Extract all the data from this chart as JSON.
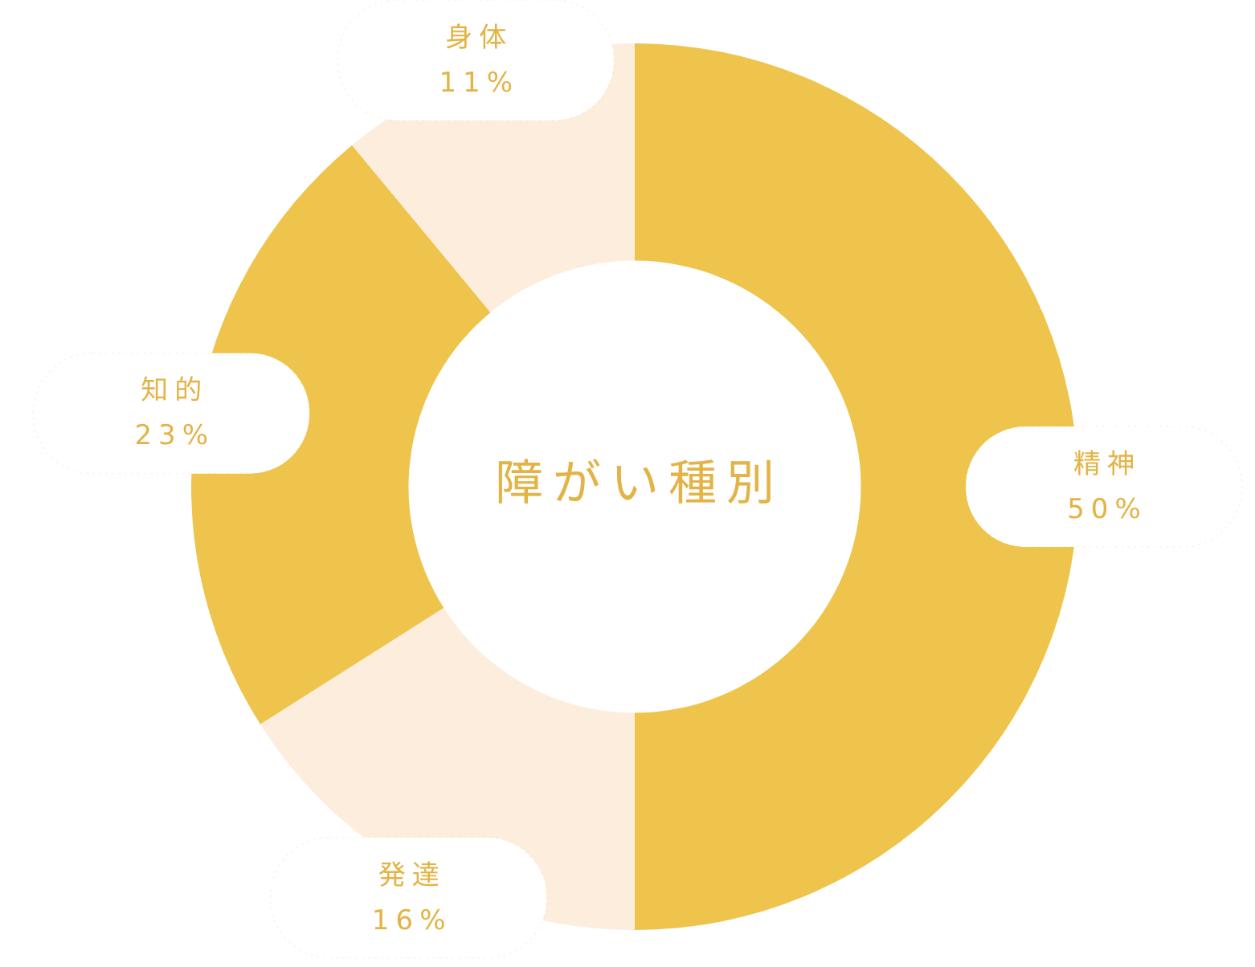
{
  "chart_data": {
    "type": "donut",
    "title": "障がい種別",
    "categories": [
      "精神",
      "発達",
      "知的",
      "身体"
    ],
    "values": [
      50,
      16,
      23,
      11
    ],
    "colors": [
      "#eec44c",
      "#fdeddc",
      "#eec44c",
      "#fdeddc"
    ],
    "value_labels": [
      "50%",
      "16%",
      "23%",
      "11%"
    ]
  }
}
